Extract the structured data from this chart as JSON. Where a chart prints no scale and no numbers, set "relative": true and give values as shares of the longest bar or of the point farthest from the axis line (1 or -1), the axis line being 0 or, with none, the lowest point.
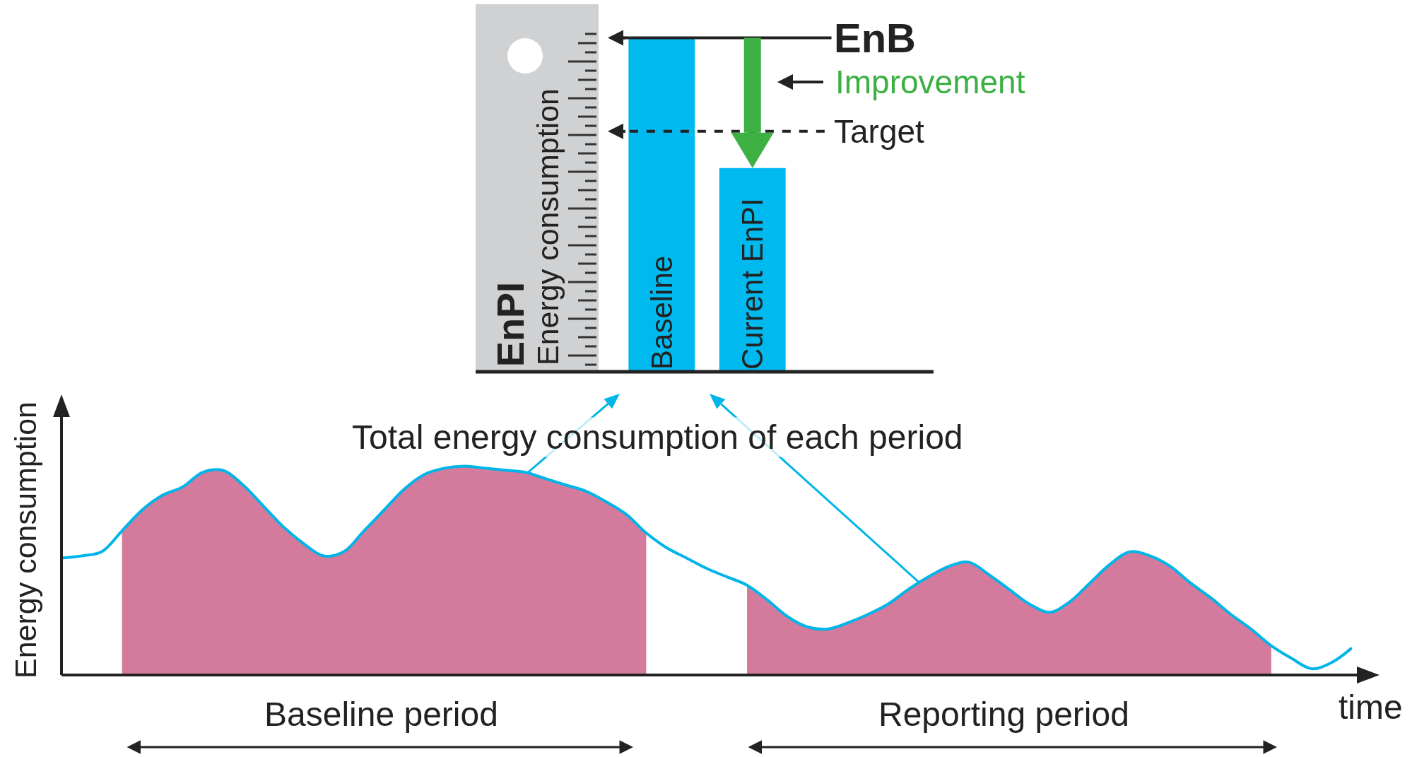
{
  "chart_data": [
    {
      "type": "bar",
      "relative": true,
      "ylabel": "Energy consumption",
      "categories": [
        "Baseline",
        "Current EnPI"
      ],
      "values": [
        1,
        0.61
      ],
      "color": "#00b9ee",
      "ref_lines": [
        {
          "axis": "y",
          "value": 1,
          "label": "EnB",
          "line_style": "solid"
        },
        {
          "axis": "y",
          "value": 0.72,
          "label": "Target",
          "line_style": "dashed"
        }
      ],
      "annotations": [
        "EnPI",
        "Improvement"
      ]
    },
    {
      "type": "line",
      "relative": true,
      "xlabel": "time",
      "ylabel": "Energy consumption",
      "categories": [
        null,
        null,
        null,
        null,
        null,
        null,
        null,
        null,
        null,
        null,
        null,
        null,
        null,
        null,
        null,
        null,
        null,
        null,
        null,
        null,
        null,
        null,
        null,
        null,
        null,
        null,
        null,
        null,
        null,
        null,
        null,
        null,
        null,
        null,
        null,
        null,
        null,
        null,
        null,
        null,
        null,
        null,
        null,
        null,
        null,
        null,
        null,
        null,
        null,
        null,
        null,
        null,
        null,
        null,
        null,
        null,
        null,
        null,
        null,
        null,
        null,
        null,
        null,
        null,
        null
      ],
      "series": [
        {
          "type": "area",
          "color": "#d47a9c",
          "values": [
            null,
            null,
            null,
            0.69,
            0.79,
            0.86,
            0.9,
            0.97,
            0.98,
            0.91,
            0.81,
            0.71,
            0.63,
            0.57,
            0.59,
            0.69,
            0.79,
            0.89,
            0.96,
            0.99,
            1,
            0.99,
            0.98,
            0.97,
            0.94,
            0.91,
            0.88,
            0.83,
            0.77,
            0.68,
            null,
            null,
            null,
            null,
            0.43,
            0.36,
            0.28,
            0.23,
            0.22,
            0.25,
            0.29,
            0.34,
            0.41,
            0.47,
            0.52,
            0.54,
            0.48,
            0.41,
            0.34,
            0.3,
            0.35,
            0.44,
            0.53,
            0.59,
            0.57,
            0.52,
            0.44,
            0.37,
            0.29,
            0.22,
            0.14,
            null,
            null,
            null,
            null
          ]
        },
        {
          "type": "line",
          "color": "#00b5e8",
          "values": [
            0.56,
            0.57,
            0.59,
            0.69,
            0.79,
            0.86,
            0.9,
            0.97,
            0.98,
            0.91,
            0.81,
            0.71,
            0.63,
            0.57,
            0.59,
            0.69,
            0.79,
            0.89,
            0.96,
            0.99,
            1,
            0.99,
            0.98,
            0.97,
            0.94,
            0.91,
            0.88,
            0.83,
            0.77,
            0.68,
            0.61,
            0.56,
            0.51,
            0.47,
            0.43,
            0.36,
            0.28,
            0.23,
            0.22,
            0.25,
            0.29,
            0.34,
            0.41,
            0.47,
            0.52,
            0.54,
            0.48,
            0.41,
            0.34,
            0.3,
            0.35,
            0.44,
            0.53,
            0.59,
            0.57,
            0.52,
            0.44,
            0.37,
            0.29,
            0.22,
            0.14,
            0.08,
            0.03,
            0.06,
            0.13
          ]
        }
      ],
      "annotations": [
        "Total energy consumption of each period",
        "Baseline period",
        "Reporting period"
      ]
    }
  ]
}
